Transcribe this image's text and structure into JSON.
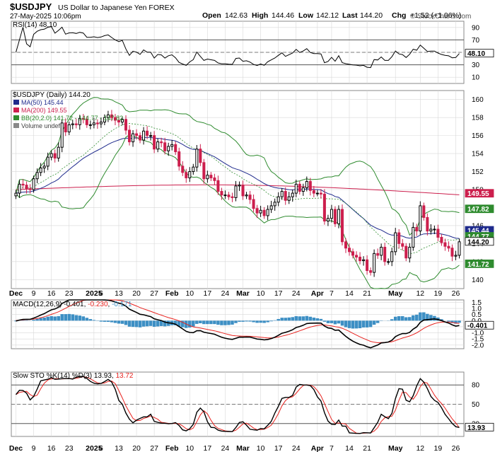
{
  "header": {
    "symbol": "$USDJPY",
    "description": "US Dollar to Japanese Yen FOREX",
    "date": "27-May-2025 10:06pm",
    "open_label": "Open",
    "open": "142.63",
    "high_label": "High",
    "high": "144.46",
    "low_label": "Low",
    "low": "142.12",
    "last_label": "Last",
    "last": "144.20",
    "chg_label": "Chg",
    "chg": "+1.52 (+1.06%)",
    "watermark": "© StockCharts.com"
  },
  "colors": {
    "candle_up": "#000000",
    "candle_down": "#cc1f4d",
    "ma50": "#1e2a8c",
    "ma200": "#cc1f4d",
    "bb": "#2e8b2e",
    "macd_hist": "#3d8fc4",
    "signal": "#e8231f",
    "grid": "#d8d8d8",
    "border": "#888888"
  },
  "rsi_panel": {
    "legend_prefix": "RSI(14)",
    "legend_value": "48.10",
    "last_label": "48.10",
    "y_ticks": [
      "90",
      "70",
      "50",
      "30",
      "10"
    ]
  },
  "price_panel": {
    "legend_title": "$USDJPY (Daily) 144.20",
    "ma50_legend": "MA(50) 145.44",
    "ma200_legend": "MA(200) 149.55",
    "bb_legend": "BB(20,2.0) 141.72 - 144.77 - 147.82",
    "volume_legend": "Volume undef",
    "y_ticks": [
      "160",
      "158",
      "156",
      "154",
      "152",
      "150",
      "148",
      "146",
      "144",
      "142",
      "140"
    ],
    "right_labels": [
      {
        "text": "149.55",
        "value": 149.55,
        "bg": "#cc1f4d",
        "fg": "#ffffff"
      },
      {
        "text": "147.82",
        "value": 147.82,
        "bg": "#2e8b2e",
        "fg": "#ffffff"
      },
      {
        "text": "145.44",
        "value": 145.44,
        "bg": "#1e2a8c",
        "fg": "#ffffff"
      },
      {
        "text": "144.77",
        "value": 144.77,
        "bg": "#2e8b2e",
        "fg": "#ffffff"
      },
      {
        "text": "144.20",
        "value": 144.2,
        "bg": "#ffffff",
        "fg": "#000000"
      },
      {
        "text": "141.72",
        "value": 141.72,
        "bg": "#2e8b2e",
        "fg": "#ffffff"
      }
    ]
  },
  "macd_panel": {
    "legend_prefix": "MACD(12,26,9)",
    "macd_value": "-0.401",
    "signal_value": "-0.230",
    "hist_value": "-0.171",
    "last_label": "-0.401",
    "y_ticks": [
      "1.5",
      "1.0",
      "0.5",
      "0.0",
      "-0.5",
      "-1.0",
      "-1.5",
      "-2.0"
    ]
  },
  "sto_panel": {
    "legend_prefix": "Slow STO %K(14) %D(3)",
    "k_value": "13.93",
    "d_value": "13.72",
    "last_label": "13.93",
    "y_ticks": [
      "80",
      "50",
      "20"
    ]
  },
  "x_labels": [
    "Dec",
    "9",
    "16",
    "23",
    "2025",
    "6",
    "13",
    "20",
    "27",
    "Feb",
    "10",
    "17",
    "24",
    "Mar",
    "10",
    "17",
    "24",
    "Apr",
    "7",
    "14",
    "21",
    "May",
    "12",
    "19",
    "26"
  ],
  "chart_data": {
    "type": "candlestick",
    "dates": [
      "2024-12-02",
      "2024-12-03",
      "2024-12-04",
      "2024-12-05",
      "2024-12-06",
      "2024-12-09",
      "2024-12-10",
      "2024-12-11",
      "2024-12-12",
      "2024-12-13",
      "2024-12-16",
      "2024-12-17",
      "2024-12-18",
      "2024-12-19",
      "2024-12-20",
      "2024-12-23",
      "2024-12-24",
      "2024-12-25",
      "2024-12-26",
      "2024-12-27",
      "2024-12-30",
      "2024-12-31",
      "2025-01-02",
      "2025-01-03",
      "2025-01-06",
      "2025-01-07",
      "2025-01-08",
      "2025-01-09",
      "2025-01-10",
      "2025-01-13",
      "2025-01-14",
      "2025-01-15",
      "2025-01-16",
      "2025-01-17",
      "2025-01-20",
      "2025-01-21",
      "2025-01-22",
      "2025-01-23",
      "2025-01-24",
      "2025-01-27",
      "2025-01-28",
      "2025-01-29",
      "2025-01-30",
      "2025-01-31",
      "2025-02-03",
      "2025-02-04",
      "2025-02-05",
      "2025-02-06",
      "2025-02-07",
      "2025-02-10",
      "2025-02-11",
      "2025-02-12",
      "2025-02-13",
      "2025-02-14",
      "2025-02-17",
      "2025-02-18",
      "2025-02-19",
      "2025-02-20",
      "2025-02-21",
      "2025-02-24",
      "2025-02-25",
      "2025-02-26",
      "2025-02-27",
      "2025-02-28",
      "2025-03-03",
      "2025-03-04",
      "2025-03-05",
      "2025-03-06",
      "2025-03-07",
      "2025-03-10",
      "2025-03-11",
      "2025-03-12",
      "2025-03-13",
      "2025-03-14",
      "2025-03-17",
      "2025-03-18",
      "2025-03-19",
      "2025-03-20",
      "2025-03-21",
      "2025-03-24",
      "2025-03-25",
      "2025-03-26",
      "2025-03-27",
      "2025-03-28",
      "2025-03-31",
      "2025-04-01",
      "2025-04-02",
      "2025-04-03",
      "2025-04-04",
      "2025-04-07",
      "2025-04-08",
      "2025-04-09",
      "2025-04-10",
      "2025-04-11",
      "2025-04-14",
      "2025-04-15",
      "2025-04-16",
      "2025-04-17",
      "2025-04-18",
      "2025-04-21",
      "2025-04-22",
      "2025-04-23",
      "2025-04-24",
      "2025-04-25",
      "2025-04-28",
      "2025-04-29",
      "2025-04-30",
      "2025-05-01",
      "2025-05-02",
      "2025-05-05",
      "2025-05-06",
      "2025-05-07",
      "2025-05-08",
      "2025-05-09",
      "2025-05-12",
      "2025-05-13",
      "2025-05-14",
      "2025-05-15",
      "2025-05-16",
      "2025-05-19",
      "2025-05-20",
      "2025-05-21",
      "2025-05-22",
      "2025-05-23",
      "2025-05-26",
      "2025-05-27"
    ],
    "close": [
      149.6,
      150.6,
      150.5,
      150.1,
      150.0,
      151.2,
      151.9,
      152.4,
      152.6,
      153.6,
      154.0,
      153.5,
      154.7,
      157.4,
      156.4,
      157.2,
      157.3,
      157.2,
      157.9,
      157.8,
      157.2,
      157.2,
      157.4,
      157.3,
      157.5,
      158.0,
      158.3,
      158.0,
      157.7,
      157.5,
      157.8,
      156.6,
      155.3,
      156.2,
      156.0,
      155.5,
      156.5,
      156.0,
      156.0,
      154.5,
      155.3,
      155.2,
      154.3,
      154.8,
      155.0,
      154.2,
      152.6,
      151.9,
      151.3,
      152.0,
      152.5,
      154.5,
      153.0,
      151.2,
      151.6,
      151.3,
      151.0,
      149.8,
      149.4,
      149.4,
      149.2,
      149.1,
      150.4,
      150.5,
      149.3,
      149.4,
      148.9,
      147.9,
      147.4,
      147.7,
      147.1,
      147.8,
      148.2,
      148.6,
      149.2,
      149.8,
      148.8,
      149.2,
      149.6,
      150.6,
      149.8,
      150.2,
      150.9,
      149.9,
      149.6,
      149.6,
      149.5,
      146.5,
      146.8,
      147.8,
      146.2,
      147.8,
      144.2,
      143.5,
      143.1,
      142.7,
      142.5,
      142.1,
      142.2,
      141.0,
      140.8,
      142.9,
      142.7,
      143.6,
      142.0,
      142.0,
      143.1,
      145.2,
      144.0,
      143.7,
      142.4,
      143.6,
      145.8,
      145.4,
      148.2,
      146.9,
      145.4,
      145.6,
      145.6,
      144.7,
      144.1,
      143.7,
      143.5,
      142.6,
      142.7,
      144.2
    ],
    "rsi14_last": 48.1,
    "ma50_last": 145.44,
    "ma200_last": 149.55,
    "bb_lower_last": 141.72,
    "bb_mid_last": 144.77,
    "bb_upper_last": 147.82,
    "macd_last": -0.401,
    "macd_signal_last": -0.23,
    "macd_hist_last": -0.171,
    "sto_k_last": 13.93,
    "sto_d_last": 13.72,
    "price_ylim": [
      139,
      161
    ],
    "rsi_ylim": [
      0,
      100
    ],
    "macd_ylim": [
      -2.3,
      1.7
    ],
    "sto_ylim": [
      0,
      100
    ]
  }
}
